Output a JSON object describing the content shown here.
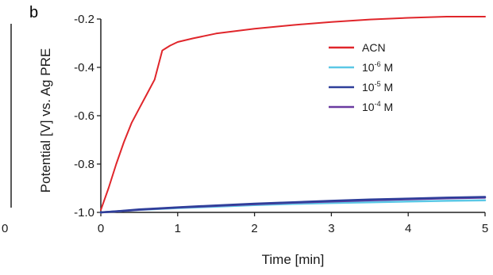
{
  "chart_data": {
    "type": "line",
    "panel_label": "b",
    "edge_tick_label": "0",
    "xlabel": "Time [min]",
    "ylabel": "Potential [V] vs. Ag PRE",
    "xlim": [
      0,
      5
    ],
    "ylim": [
      -1.0,
      -0.2
    ],
    "xticks": [
      0,
      1,
      2,
      3,
      4,
      5
    ],
    "yticks": [
      -1.0,
      -0.8,
      -0.6,
      -0.4,
      -0.2
    ],
    "xtick_labels": [
      "0",
      "1",
      "2",
      "3",
      "4",
      "5"
    ],
    "ytick_labels": [
      "-1.0",
      "-0.8",
      "-0.6",
      "-0.4",
      "-0.2"
    ],
    "grid": false,
    "legend_position": "top-right",
    "series": [
      {
        "name": "ACN",
        "legend_base": "ACN",
        "legend_exp": "",
        "color": "#e0262b",
        "x": [
          0,
          0.1,
          0.2,
          0.3,
          0.4,
          0.5,
          0.6,
          0.7,
          0.75,
          0.8,
          0.85,
          0.9,
          1.0,
          1.2,
          1.5,
          2.0,
          2.5,
          3.0,
          3.5,
          4.0,
          4.5,
          5.0
        ],
        "y": [
          -0.99,
          -0.9,
          -0.8,
          -0.71,
          -0.63,
          -0.57,
          -0.51,
          -0.45,
          -0.39,
          -0.33,
          -0.32,
          -0.31,
          -0.295,
          -0.28,
          -0.26,
          -0.24,
          -0.225,
          -0.212,
          -0.202,
          -0.195,
          -0.19,
          -0.19
        ]
      },
      {
        "name": "10-6 M",
        "legend_base": "10",
        "legend_exp": "-6",
        "legend_unit": " M",
        "color": "#5bc8e6",
        "x": [
          0,
          0.25,
          0.5,
          1.0,
          1.5,
          2.0,
          2.5,
          3.0,
          3.5,
          4.0,
          4.5,
          5.0
        ],
        "y": [
          -1.0,
          -0.995,
          -0.99,
          -0.982,
          -0.976,
          -0.97,
          -0.965,
          -0.961,
          -0.958,
          -0.955,
          -0.952,
          -0.95
        ]
      },
      {
        "name": "10-5 M",
        "legend_base": "10",
        "legend_exp": "-5",
        "legend_unit": " M",
        "color": "#2e3e9a",
        "x": [
          0,
          0.25,
          0.5,
          1.0,
          1.5,
          2.0,
          2.5,
          3.0,
          3.5,
          4.0,
          4.5,
          5.0
        ],
        "y": [
          -1.0,
          -0.994,
          -0.988,
          -0.979,
          -0.971,
          -0.964,
          -0.958,
          -0.952,
          -0.947,
          -0.943,
          -0.939,
          -0.936
        ]
      },
      {
        "name": "10-4 M",
        "legend_base": "10",
        "legend_exp": "-4",
        "legend_unit": " M",
        "color": "#6a3aa0",
        "x": [
          0,
          0.25,
          0.5,
          1.0,
          1.5,
          2.0,
          2.5,
          3.0,
          3.5,
          4.0,
          4.5,
          5.0
        ],
        "y": [
          -1.0,
          -0.995,
          -0.989,
          -0.98,
          -0.973,
          -0.966,
          -0.96,
          -0.955,
          -0.95,
          -0.946,
          -0.942,
          -0.939
        ]
      }
    ]
  }
}
